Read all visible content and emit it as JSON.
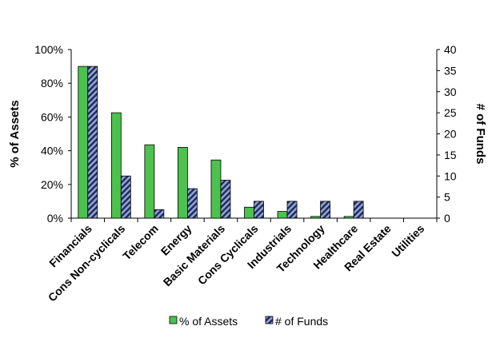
{
  "chart_data": {
    "type": "bar",
    "categories": [
      "Financials",
      "Cons Non-cyclicals",
      "Telecom",
      "Energy",
      "Basic Materials",
      "Cons Cyclicals",
      "Industrials",
      "Technology",
      "Healthcare",
      "Real Estate",
      "Utilities"
    ],
    "series": [
      {
        "name": "% of Assets",
        "axis": "left",
        "values": [
          90,
          62.5,
          43.5,
          42,
          34.5,
          6.5,
          4,
          1,
          1,
          0,
          0
        ],
        "color": "#4dc14d"
      },
      {
        "name": "# of Funds",
        "axis": "right",
        "values": [
          36,
          10,
          2,
          7,
          9,
          4,
          4,
          4,
          4,
          0,
          0
        ],
        "color": "#7b8fd0",
        "pattern": "diagonal-hatch"
      }
    ],
    "left_axis": {
      "label": "% of Assets",
      "range": [
        0,
        100
      ],
      "ticks": [
        "0%",
        "20%",
        "40%",
        "60%",
        "80%",
        "100%"
      ]
    },
    "right_axis": {
      "label": "# of Funds",
      "range": [
        0,
        40
      ],
      "ticks": [
        "0",
        "5",
        "10",
        "15",
        "20",
        "25",
        "30",
        "35",
        "40"
      ]
    },
    "grid": false,
    "legend": "bottom-center"
  }
}
